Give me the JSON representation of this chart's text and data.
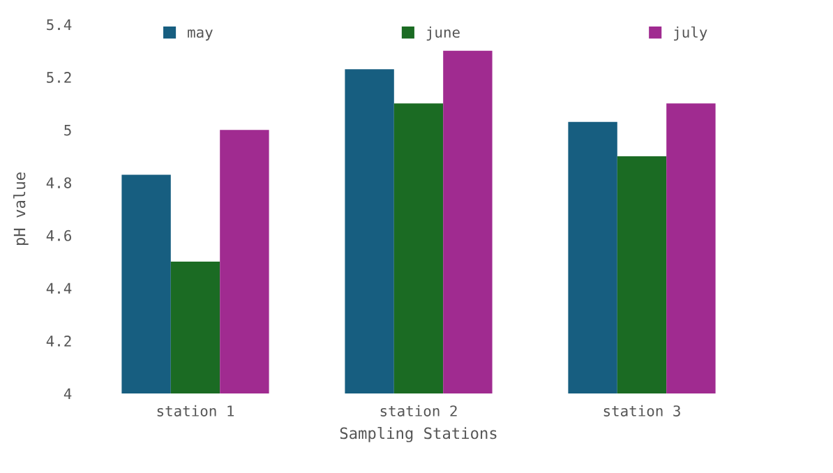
{
  "chart_data": {
    "type": "bar",
    "xlabel": "Sampling Stations",
    "ylabel": "pH value",
    "categories": [
      "station 1",
      "station 2",
      "station 3"
    ],
    "series": [
      {
        "name": "may",
        "color": "#175e80",
        "values": [
          4.83,
          5.23,
          5.03
        ]
      },
      {
        "name": "june",
        "color": "#1b6b23",
        "values": [
          4.5,
          5.1,
          4.9
        ]
      },
      {
        "name": "july",
        "color": "#a02b90",
        "values": [
          5.0,
          5.3,
          5.1
        ]
      }
    ],
    "ylim": [
      4,
      5.4
    ],
    "yticks": [
      4,
      4.2,
      4.4,
      4.6,
      4.8,
      5,
      5.2,
      5.4
    ],
    "grid": false,
    "legend": "top"
  }
}
